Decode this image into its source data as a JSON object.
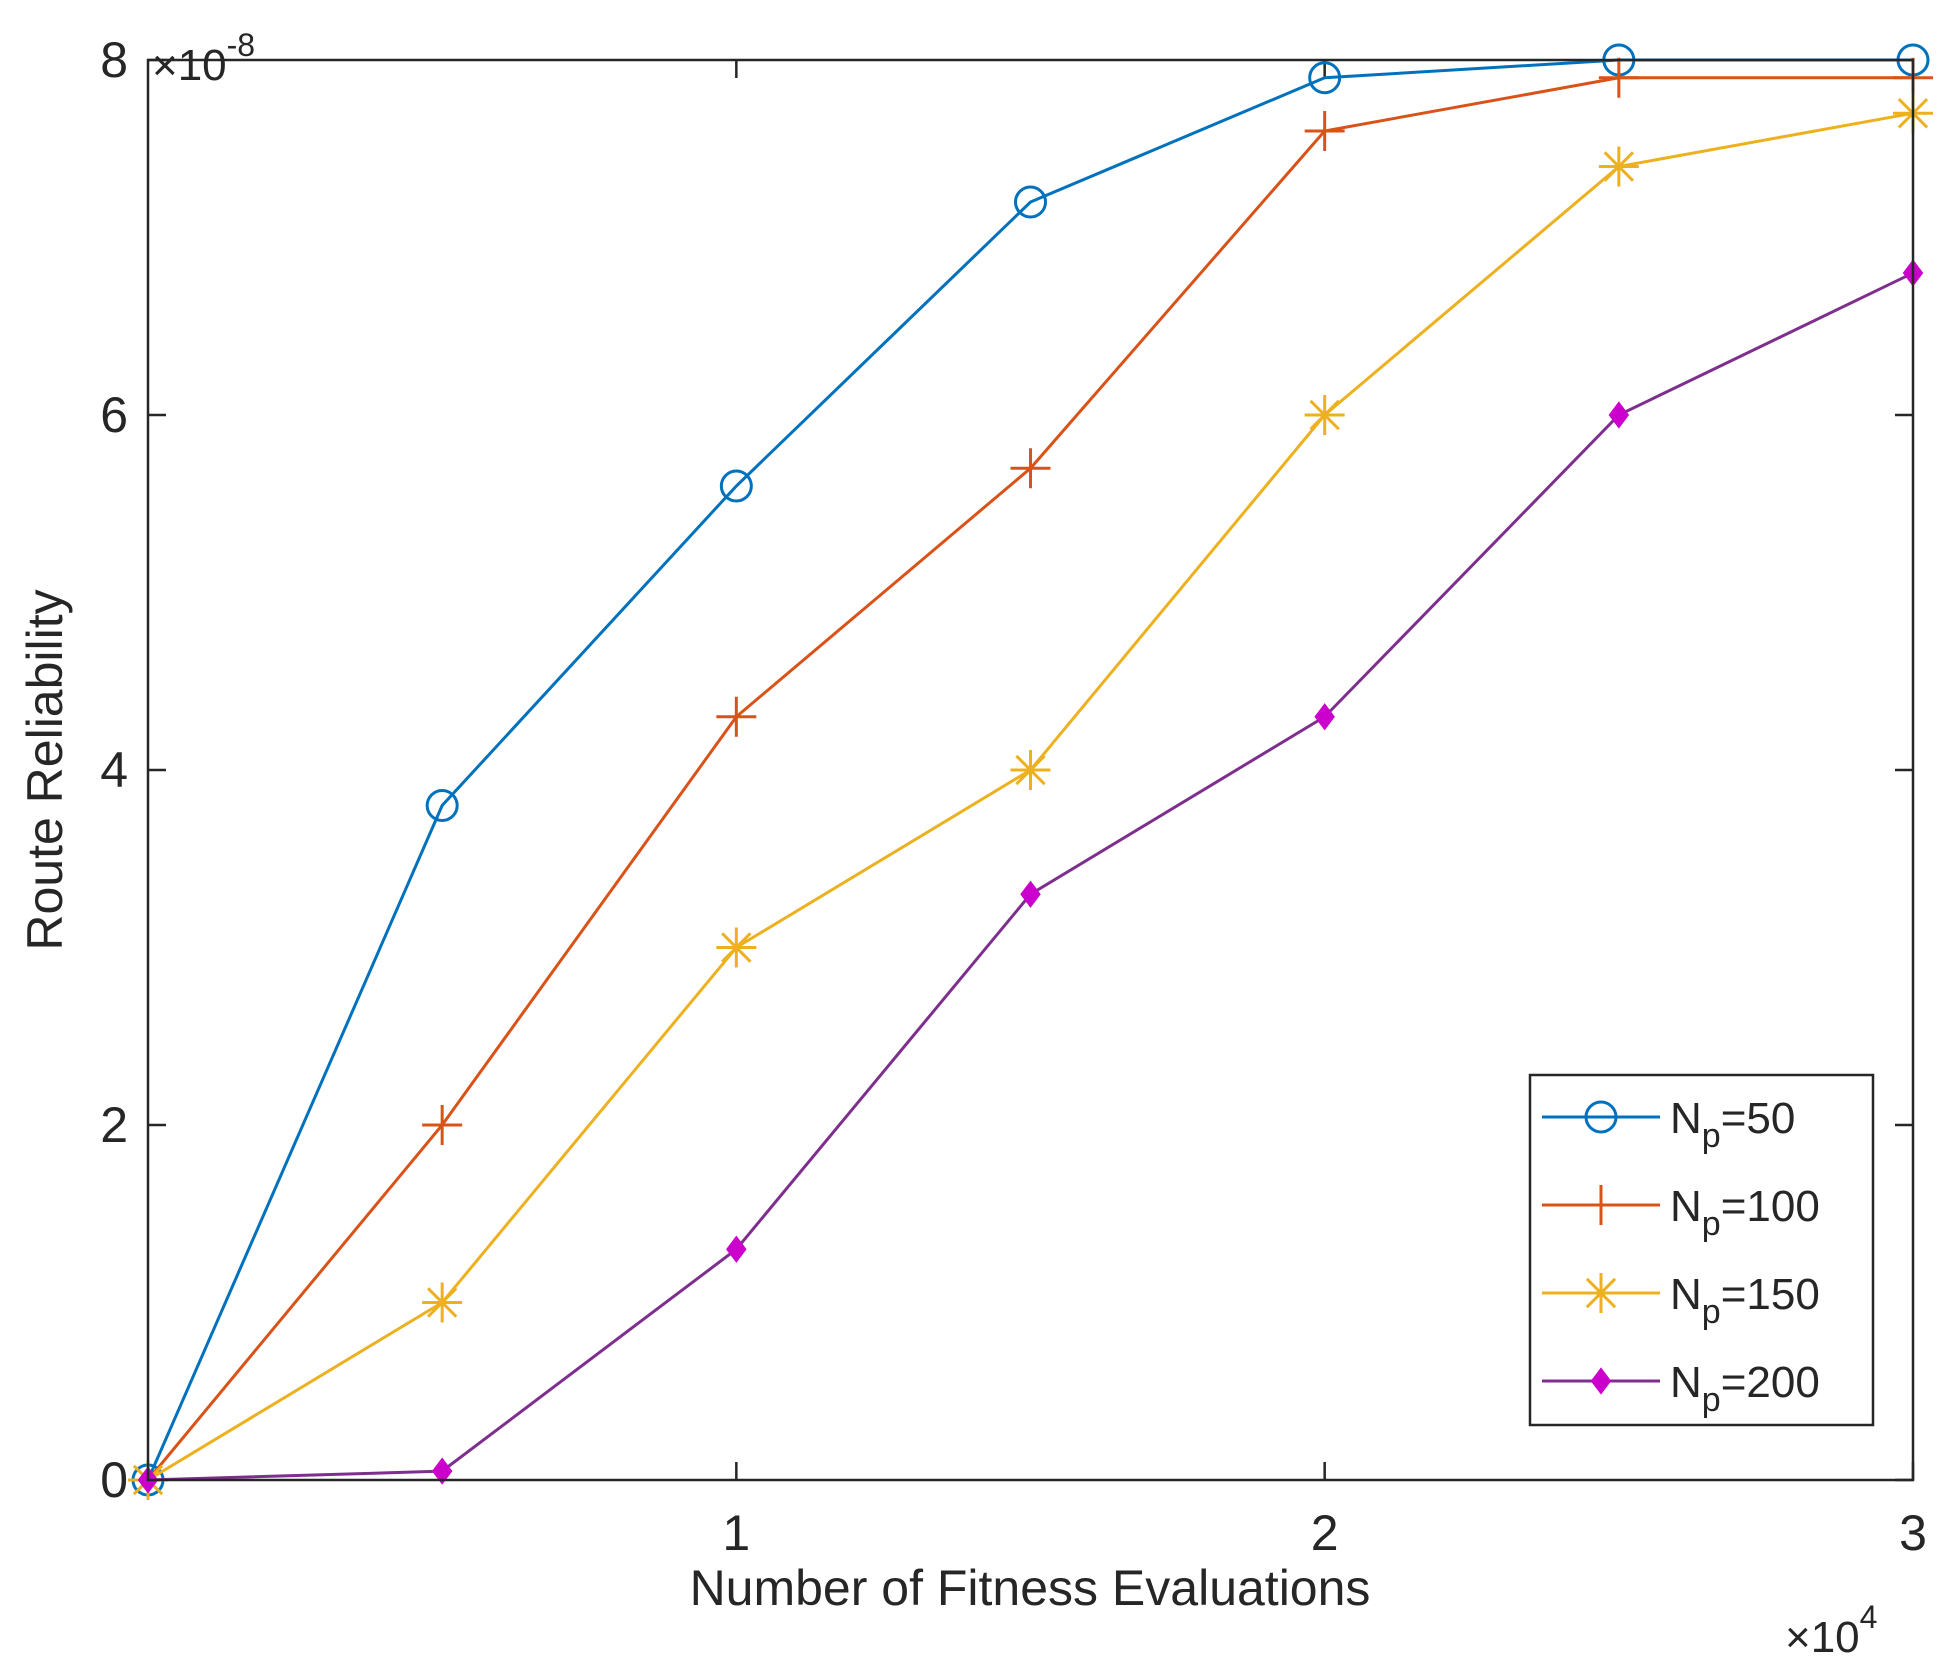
{
  "chart_data": {
    "type": "line",
    "xlabel": "Number of Fitness Evaluations",
    "ylabel": "Route Reliability",
    "x_exponent": {
      "base": "×10",
      "power": "4"
    },
    "y_exponent": {
      "base": "×10",
      "power": "-8"
    },
    "xlim": [
      0,
      3
    ],
    "ylim": [
      0,
      8
    ],
    "xticks": [
      1,
      2,
      3
    ],
    "xtick_labels": [
      "1",
      "2",
      "3"
    ],
    "yticks": [
      0,
      2,
      4,
      6,
      8
    ],
    "ytick_labels": [
      "0",
      "2",
      "4",
      "6",
      "8"
    ],
    "legend_position": "bottom-right",
    "x": [
      0,
      0.5,
      1.0,
      1.5,
      2.0,
      2.5,
      3.0
    ],
    "series": [
      {
        "name": "N_p=50",
        "label_main": "N",
        "label_sub": "p",
        "label_value": "=50",
        "color": "#0072BD",
        "marker": "circle",
        "values": [
          0,
          3.8,
          5.6,
          7.2,
          7.9,
          8.0,
          8.0
        ]
      },
      {
        "name": "N_p=100",
        "label_main": "N",
        "label_sub": "p",
        "label_value": "=100",
        "color": "#D95319",
        "marker": "plus",
        "values": [
          0,
          2.0,
          4.3,
          5.7,
          7.6,
          7.9,
          7.9
        ]
      },
      {
        "name": "N_p=150",
        "label_main": "N",
        "label_sub": "p",
        "label_value": "=150",
        "color": "#EDB120",
        "marker": "asterisk",
        "values": [
          0,
          1.0,
          3.0,
          4.0,
          6.0,
          7.4,
          7.7
        ]
      },
      {
        "name": "N_p=200",
        "label_main": "N",
        "label_sub": "p",
        "label_value": "=200",
        "color": "#7E2F8E",
        "marker_color": "#CC00CC",
        "marker": "diamond",
        "values": [
          0,
          0.05,
          1.3,
          3.3,
          4.3,
          6.0,
          6.8
        ]
      }
    ]
  }
}
